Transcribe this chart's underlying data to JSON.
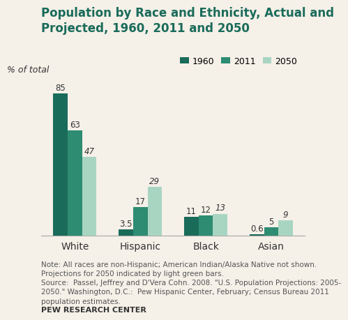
{
  "title": "Population by Race and Ethnicity, Actual and\nProjected, 1960, 2011 and 2050",
  "ylabel": "% of total",
  "categories": [
    "White",
    "Hispanic",
    "Black",
    "Asian"
  ],
  "series": {
    "1960": [
      85,
      3.5,
      11,
      0.6
    ],
    "2011": [
      63,
      17,
      12,
      5
    ],
    "2050": [
      47,
      29,
      13,
      9
    ]
  },
  "colors": {
    "1960": "#1a6b5a",
    "2011": "#2d8c72",
    "2050": "#a8d5c2"
  },
  "bar_width": 0.22,
  "ylim": [
    0,
    95
  ],
  "note": "Note: All races are non-Hispanic; American Indian/Alaska Native not shown.\nProjections for 2050 indicated by light green bars.",
  "source": "Source:  Passel, Jeffrey and D'Vera Cohn. 2008. \"U.S. Population Projections: 2005-\n2050.\" Washington, D.C.:  Pew Hispanic Center, February; Census Bureau 2011\npopulation estimates.",
  "footer": "PEW RESEARCH CENTER",
  "bg_color": "#f5f0e8",
  "label_fontsize": 8.5,
  "title_fontsize": 12,
  "note_fontsize": 7.5
}
